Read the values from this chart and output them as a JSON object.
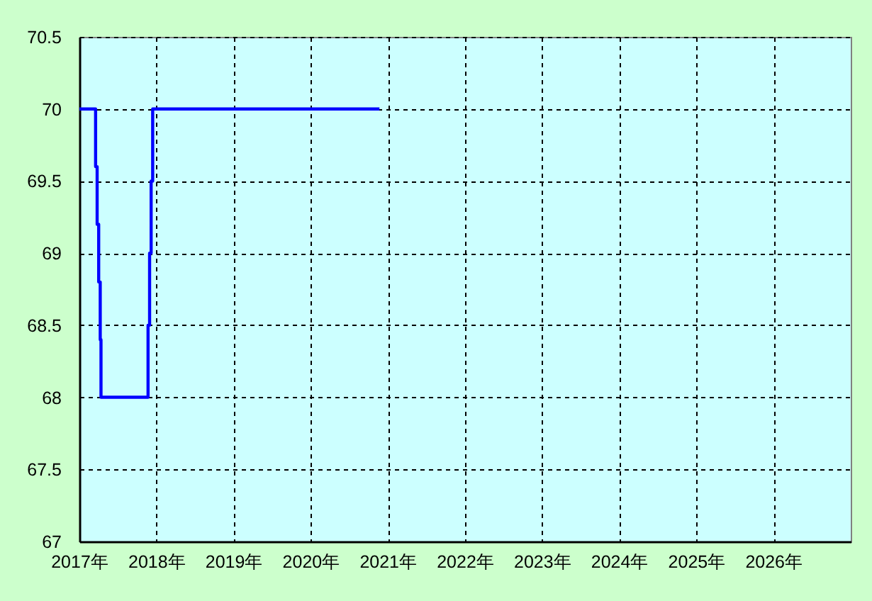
{
  "chart_data": {
    "type": "step",
    "x": [
      2017.0,
      2017.21,
      2017.23,
      2017.25,
      2017.27,
      2017.28,
      2017.89,
      2017.91,
      2017.93,
      2017.95,
      2020.89
    ],
    "series": [
      {
        "color": "#0000ff",
        "values": [
          70,
          69.6,
          69.2,
          68.8,
          68.4,
          68,
          68.5,
          69,
          69.5,
          70,
          70
        ]
      }
    ],
    "xlim": [
      2017,
      2027
    ],
    "xticks": [
      {
        "value": 2017,
        "label": "2017年"
      },
      {
        "value": 2018,
        "label": "2018年"
      },
      {
        "value": 2019,
        "label": "2019年"
      },
      {
        "value": 2020,
        "label": "2020年"
      },
      {
        "value": 2021,
        "label": "2021年"
      },
      {
        "value": 2022,
        "label": "2022年"
      },
      {
        "value": 2023,
        "label": "2023年"
      },
      {
        "value": 2024,
        "label": "2024年"
      },
      {
        "value": 2025,
        "label": "2025年"
      },
      {
        "value": 2026,
        "label": "2026年"
      }
    ],
    "ylim": [
      67,
      70.5
    ],
    "yticks": [
      67,
      67.5,
      68,
      68.5,
      69,
      69.5,
      70,
      70.5
    ],
    "grid": true,
    "line_style": "solid"
  }
}
